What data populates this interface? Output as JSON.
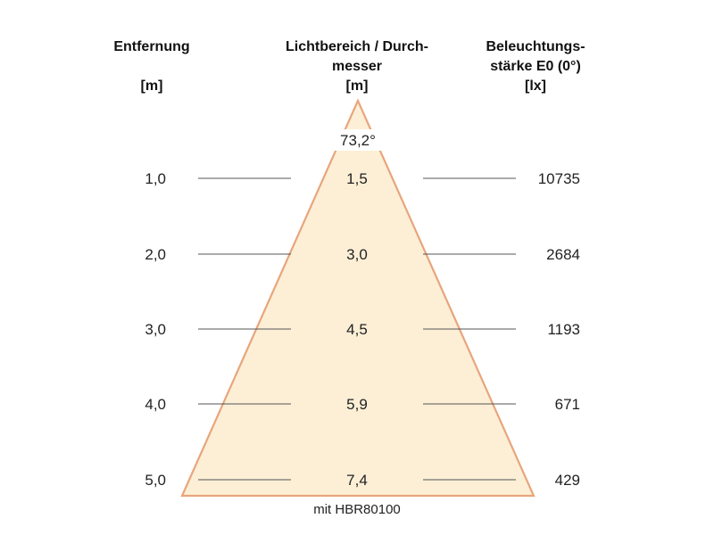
{
  "headers": {
    "distance": [
      "Entfernung",
      "",
      "[m]"
    ],
    "diameter": [
      "Lichtbereich / Durch-",
      "messer",
      "[m]"
    ],
    "illuminance": [
      "Beleuchtungs-",
      "stärke E0 (0°)",
      "[lx]"
    ]
  },
  "beam_angle": "73,2°",
  "rows": [
    {
      "distance": "1,0",
      "diameter": "1,5",
      "illuminance": "10735"
    },
    {
      "distance": "2,0",
      "diameter": "3,0",
      "illuminance": "2684"
    },
    {
      "distance": "3,0",
      "diameter": "4,5",
      "illuminance": "1193"
    },
    {
      "distance": "4,0",
      "diameter": "5,9",
      "illuminance": "671"
    },
    {
      "distance": "5,0",
      "diameter": "7,4",
      "illuminance": "429"
    }
  ],
  "footnote": "mit HBR80100",
  "colors": {
    "cone_fill": "#fcefd6",
    "cone_edge": "#e8a57c"
  }
}
